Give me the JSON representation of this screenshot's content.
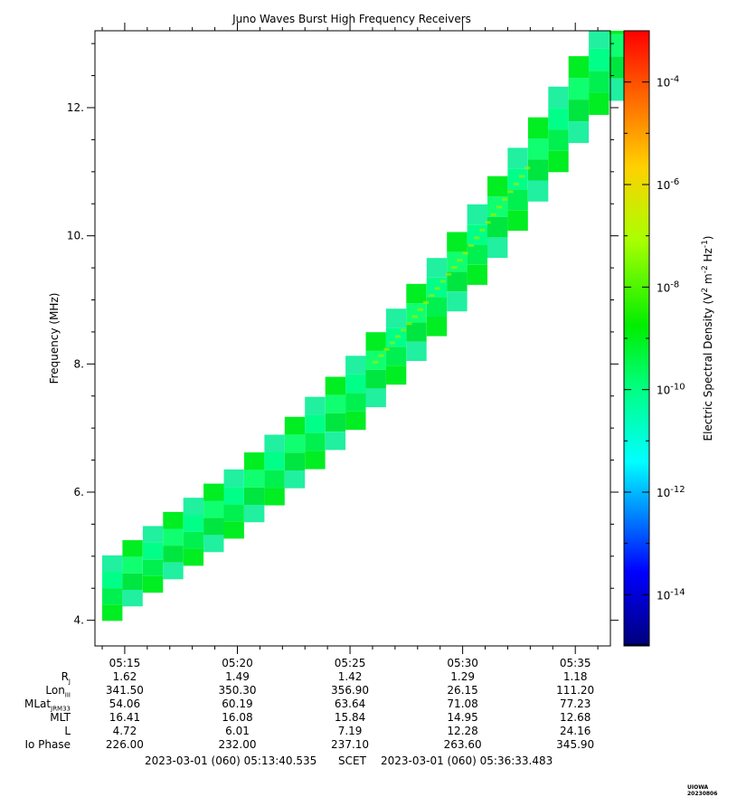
{
  "chart_data": {
    "type": "heatmap",
    "title": "Juno Waves Burst High Frequency Receivers",
    "ylabel": "Frequency (MHz)",
    "ylim": [
      3.6,
      13.2
    ],
    "yticks": [
      "4.",
      "6.",
      "8.",
      "10.",
      "12."
    ],
    "ytick_values": [
      4,
      6,
      8,
      10,
      12
    ],
    "xlim_minutes": [
      313.678,
      336.558
    ],
    "xticks": [
      "05:15",
      "05:20",
      "05:25",
      "05:30",
      "05:35"
    ],
    "xtick_minutes": [
      315,
      320,
      325,
      330,
      335
    ],
    "colorbar": {
      "label": "Electric Spectral Density (V² m⁻² Hz⁻¹)",
      "log_range": [
        -15,
        -3
      ],
      "tick_labels": [
        "10^-14",
        "10^-12",
        "10^-10",
        "10^-8",
        "10^-6",
        "10^-4"
      ],
      "tick_exponents": [
        -14,
        -12,
        -10,
        -8,
        -6,
        -4
      ]
    },
    "sweep_band": {
      "time_minutes": [
        313.7,
        315.0,
        317.5,
        320.0,
        322.5,
        325.0,
        327.5,
        330.0,
        332.5,
        335.0,
        336.5
      ],
      "freq_center_mhz": [
        4.3,
        4.65,
        5.25,
        5.85,
        6.6,
        7.45,
        8.45,
        9.55,
        10.75,
        12.05,
        12.8
      ],
      "band_halfwidth_mhz": 0.5,
      "intensity_log": -10.3
    }
  },
  "ephemeris": {
    "rows": [
      {
        "label": "R",
        "sub": "J",
        "values": [
          "1.62",
          "1.49",
          "1.42",
          "1.29",
          "1.18"
        ]
      },
      {
        "label": "Lon",
        "sub": "III",
        "values": [
          "341.50",
          "350.30",
          "356.90",
          "26.15",
          "111.20"
        ]
      },
      {
        "label": "MLat",
        "sub": "JRM33",
        "values": [
          "54.06",
          "60.19",
          "63.64",
          "71.08",
          "77.23"
        ]
      },
      {
        "label": "MLT",
        "sub": "",
        "values": [
          "16.41",
          "16.08",
          "15.84",
          "14.95",
          "12.68"
        ]
      },
      {
        "label": "L",
        "sub": "",
        "values": [
          "4.72",
          "6.01",
          "7.19",
          "12.28",
          "24.16"
        ]
      },
      {
        "label": "Io Phase",
        "sub": "",
        "values": [
          "226.00",
          "232.00",
          "237.10",
          "263.60",
          "345.90"
        ]
      }
    ]
  },
  "footer": {
    "start": "2023-03-01 (060) 05:13:40.535",
    "scet": "SCET",
    "end": "2023-03-01 (060) 05:36:33.483"
  },
  "credit": "UIOWA 20230806"
}
